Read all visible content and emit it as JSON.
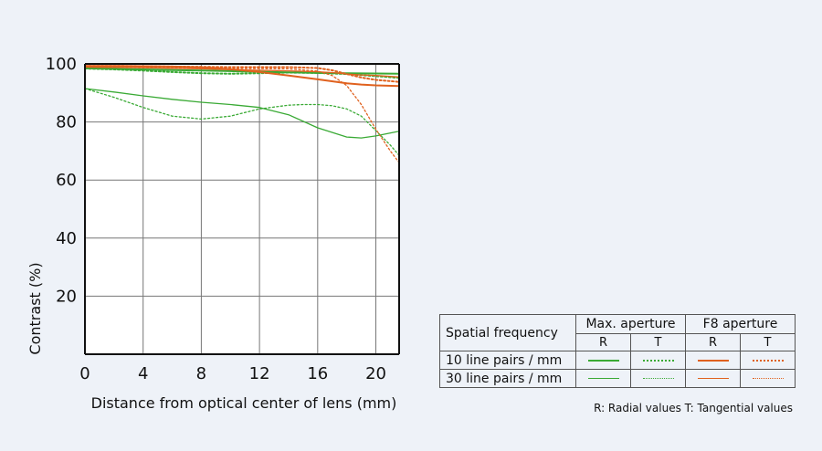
{
  "chart_data": {
    "type": "line",
    "xlabel": "Distance from optical center of lens (mm)",
    "ylabel": "Contrast (%)",
    "xlim": [
      0,
      21.6
    ],
    "ylim": [
      0,
      100
    ],
    "x_ticks": [
      0,
      4,
      8,
      12,
      16,
      20
    ],
    "y_ticks": [
      20,
      40,
      60,
      80,
      100
    ],
    "grid": true,
    "colors": {
      "max_aperture": "#3aaa35",
      "f8_aperture": "#e0611e"
    },
    "series": [
      {
        "aperture": "max",
        "frequency": "10 line pairs / mm",
        "direction": "R",
        "style": "solid",
        "x": [
          0,
          2,
          4,
          6,
          8,
          10,
          12,
          14,
          16,
          18,
          20,
          21.6
        ],
        "y": [
          98.5,
          98.3,
          98.1,
          97.9,
          97.7,
          97.5,
          97.3,
          97.1,
          96.9,
          96.8,
          96.7,
          96.6
        ]
      },
      {
        "aperture": "max",
        "frequency": "10 line pairs / mm",
        "direction": "T",
        "style": "dotted",
        "x": [
          0,
          2,
          4,
          6,
          8,
          10,
          12,
          14,
          16,
          18,
          20,
          21.6
        ],
        "y": [
          98.4,
          98.1,
          97.7,
          97.2,
          96.8,
          96.6,
          96.8,
          97.0,
          96.9,
          96.5,
          95.8,
          95.2
        ]
      },
      {
        "aperture": "max",
        "frequency": "30 line pairs / mm",
        "direction": "R",
        "style": "solid",
        "x": [
          0,
          2,
          4,
          6,
          8,
          10,
          12,
          14,
          16,
          18,
          19,
          20,
          21.6
        ],
        "y": [
          91.5,
          90.3,
          89.0,
          87.8,
          86.8,
          86.0,
          85.0,
          82.5,
          78.0,
          74.8,
          74.5,
          75.2,
          76.8
        ]
      },
      {
        "aperture": "max",
        "frequency": "30 line pairs / mm",
        "direction": "T",
        "style": "dotted",
        "x": [
          0,
          2,
          4,
          6,
          8,
          10,
          12,
          14,
          15,
          16,
          17,
          18,
          19,
          20,
          21,
          21.6
        ],
        "y": [
          91.5,
          88.5,
          85.0,
          82.0,
          81.0,
          82.0,
          84.5,
          85.8,
          86.0,
          86.0,
          85.6,
          84.5,
          82.0,
          77.0,
          72.0,
          68.5
        ]
      },
      {
        "aperture": "f8",
        "frequency": "10 line pairs / mm",
        "direction": "R",
        "style": "solid",
        "x": [
          0,
          2,
          4,
          6,
          8,
          10,
          12,
          14,
          16,
          18,
          19,
          20,
          21.6
        ],
        "y": [
          99.3,
          99.3,
          99.2,
          99.1,
          98.8,
          98.2,
          97.2,
          96.0,
          94.7,
          93.3,
          92.9,
          92.6,
          92.4
        ]
      },
      {
        "aperture": "f8",
        "frequency": "10 line pairs / mm",
        "direction": "T",
        "style": "dotted",
        "x": [
          0,
          2,
          4,
          6,
          8,
          10,
          12,
          14,
          16,
          17,
          18,
          19,
          20,
          21.6
        ],
        "y": [
          99.3,
          99.3,
          99.2,
          99.1,
          99.0,
          98.9,
          98.9,
          98.9,
          98.6,
          97.8,
          96.5,
          95.3,
          94.5,
          93.8
        ]
      },
      {
        "aperture": "f8",
        "frequency": "30 line pairs / mm",
        "direction": "R",
        "style": "solid",
        "x": [
          0,
          2,
          4,
          6,
          8,
          10,
          12,
          14,
          16,
          17,
          18,
          19,
          20,
          21.6
        ],
        "y": [
          98.9,
          98.8,
          98.7,
          98.5,
          98.3,
          98.0,
          97.8,
          97.6,
          97.3,
          97.0,
          96.5,
          96.2,
          96.0,
          95.5
        ]
      },
      {
        "aperture": "f8",
        "frequency": "30 line pairs / mm",
        "direction": "T",
        "style": "dotted",
        "x": [
          0,
          2,
          4,
          6,
          8,
          10,
          12,
          14,
          16,
          17,
          18,
          19,
          20,
          21,
          21.6
        ],
        "y": [
          98.9,
          98.8,
          98.7,
          98.6,
          98.5,
          98.4,
          98.4,
          98.3,
          97.5,
          96.0,
          92.5,
          86.0,
          77.5,
          70.0,
          66.0
        ]
      }
    ]
  },
  "legend": {
    "header": "Spatial frequency",
    "groups": [
      "Max. aperture",
      "F8 aperture"
    ],
    "sub": [
      "R",
      "T",
      "R",
      "T"
    ],
    "rows": [
      "10 line pairs / mm",
      "30 line pairs / mm"
    ],
    "note": "R: Radial values  T: Tangential values"
  }
}
